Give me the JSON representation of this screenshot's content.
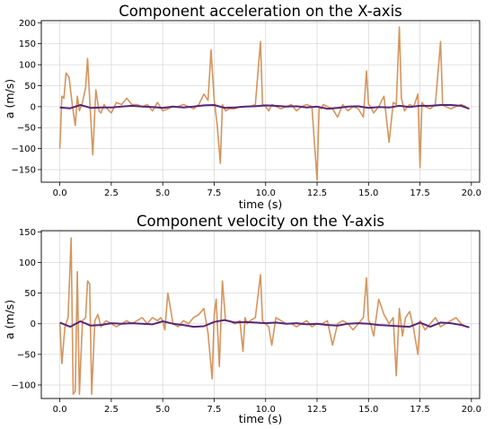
{
  "chart_data": [
    {
      "type": "line",
      "title": "Component acceleration on the X-axis",
      "xlabel": "time (s)",
      "ylabel": "a (m/s)",
      "xlim": [
        -0.9,
        20.4
      ],
      "ylim": [
        -180,
        205
      ],
      "xticks": [
        0.0,
        2.5,
        5.0,
        7.5,
        10.0,
        12.5,
        15.0,
        17.5,
        20.0
      ],
      "xtick_labels": [
        "0.0",
        "2.5",
        "5.0",
        "7.5",
        "10.0",
        "12.5",
        "15.0",
        "17.5",
        "20.0"
      ],
      "yticks": [
        -150,
        -100,
        -50,
        0,
        50,
        100,
        150,
        200
      ],
      "ytick_labels": [
        "−150",
        "−100",
        "−50",
        "0",
        "50",
        "100",
        "150",
        "200"
      ],
      "grid": true,
      "series": [
        {
          "color": "#d4955e",
          "x": [
            0.0,
            0.1,
            0.2,
            0.3,
            0.45,
            0.6,
            0.75,
            0.85,
            0.95,
            1.1,
            1.25,
            1.35,
            1.45,
            1.6,
            1.75,
            1.9,
            2.0,
            2.15,
            2.3,
            2.5,
            2.75,
            3.0,
            3.25,
            3.5,
            3.75,
            4.0,
            4.25,
            4.5,
            4.75,
            5.0,
            5.25,
            5.5,
            5.75,
            6.0,
            6.25,
            6.5,
            6.75,
            7.0,
            7.2,
            7.35,
            7.5,
            7.65,
            7.8,
            7.9,
            8.05,
            8.25,
            8.5,
            8.75,
            9.0,
            9.25,
            9.5,
            9.75,
            9.85,
            10.0,
            10.15,
            10.3,
            10.5,
            10.75,
            11.0,
            11.25,
            11.5,
            11.75,
            12.0,
            12.25,
            12.5,
            12.6,
            12.7,
            12.8,
            13.0,
            13.25,
            13.5,
            13.75,
            14.0,
            14.25,
            14.5,
            14.75,
            14.9,
            15.0,
            15.1,
            15.25,
            15.5,
            15.75,
            16.0,
            16.2,
            16.35,
            16.5,
            16.6,
            16.75,
            16.9,
            17.0,
            17.2,
            17.4,
            17.5,
            17.6,
            17.75,
            18.0,
            18.25,
            18.5,
            18.6,
            18.75,
            19.0,
            19.25,
            19.5,
            19.75
          ],
          "y": [
            -100,
            25,
            20,
            80,
            70,
            5,
            -45,
            25,
            -10,
            10,
            45,
            115,
            20,
            -115,
            40,
            -10,
            -15,
            5,
            -5,
            -15,
            10,
            5,
            20,
            5,
            5,
            0,
            5,
            -10,
            10,
            -10,
            -5,
            0,
            0,
            5,
            0,
            -5,
            5,
            30,
            15,
            135,
            15,
            -45,
            -135,
            5,
            -10,
            -5,
            -5,
            0,
            0,
            0,
            5,
            155,
            5,
            0,
            -10,
            5,
            0,
            -5,
            0,
            5,
            -10,
            0,
            5,
            0,
            -175,
            0,
            -5,
            5,
            0,
            -5,
            -25,
            5,
            -10,
            0,
            -5,
            -25,
            85,
            5,
            0,
            -15,
            0,
            25,
            -85,
            10,
            5,
            190,
            20,
            -10,
            0,
            5,
            0,
            30,
            -145,
            10,
            0,
            -5,
            5,
            155,
            5,
            0,
            -5,
            0,
            5,
            0
          ]
        },
        {
          "color": "#5b2477",
          "x": [
            0.0,
            0.5,
            1.0,
            1.5,
            2.0,
            2.5,
            3.0,
            3.5,
            4.0,
            4.5,
            5.0,
            5.5,
            6.0,
            6.5,
            7.0,
            7.5,
            8.0,
            8.5,
            9.0,
            9.5,
            10.0,
            10.5,
            11.0,
            11.5,
            12.0,
            12.5,
            13.0,
            13.5,
            14.0,
            14.5,
            15.0,
            15.5,
            16.0,
            16.5,
            17.0,
            17.5,
            18.0,
            18.5,
            19.0,
            19.5,
            19.9
          ],
          "y": [
            -2,
            -4,
            4,
            -3,
            -2,
            -2,
            0,
            2,
            0,
            -1,
            -3,
            0,
            -2,
            0,
            3,
            4,
            -3,
            -2,
            0,
            1,
            3,
            2,
            0,
            1,
            -2,
            0,
            -5,
            -3,
            0,
            1,
            -3,
            -1,
            -2,
            2,
            -1,
            2,
            2,
            4,
            4,
            2,
            -5
          ]
        }
      ]
    },
    {
      "type": "line",
      "title": "Component velocity on the Y-axis",
      "xlabel": "time (s)",
      "ylabel": "a (m/s)",
      "xlim": [
        -0.9,
        20.4
      ],
      "ylim": [
        -122,
        152
      ],
      "xticks": [
        0.0,
        2.5,
        5.0,
        7.5,
        10.0,
        12.5,
        15.0,
        17.5,
        20.0
      ],
      "xtick_labels": [
        "0.0",
        "2.5",
        "5.0",
        "7.5",
        "10.0",
        "12.5",
        "15.0",
        "17.5",
        "20.0"
      ],
      "yticks": [
        -100,
        -50,
        0,
        50,
        100,
        150
      ],
      "ytick_labels": [
        "−100",
        "−50",
        "0",
        "50",
        "100",
        "150"
      ],
      "grid": true,
      "series": [
        {
          "color": "#d4955e",
          "x": [
            0.0,
            0.1,
            0.25,
            0.4,
            0.55,
            0.65,
            0.75,
            0.85,
            0.95,
            1.1,
            1.25,
            1.35,
            1.45,
            1.55,
            1.7,
            1.85,
            2.0,
            2.25,
            2.5,
            2.75,
            3.0,
            3.25,
            3.5,
            3.75,
            4.0,
            4.25,
            4.5,
            4.75,
            4.9,
            5.0,
            5.1,
            5.25,
            5.5,
            5.75,
            6.0,
            6.25,
            6.5,
            6.75,
            7.0,
            7.2,
            7.4,
            7.5,
            7.6,
            7.75,
            7.9,
            8.05,
            8.25,
            8.5,
            8.75,
            8.9,
            9.0,
            9.1,
            9.25,
            9.5,
            9.75,
            9.85,
            10.0,
            10.15,
            10.3,
            10.5,
            10.75,
            11.0,
            11.25,
            11.5,
            11.75,
            12.0,
            12.25,
            12.5,
            12.75,
            13.0,
            13.25,
            13.5,
            13.75,
            14.0,
            14.25,
            14.5,
            14.75,
            14.9,
            15.0,
            15.1,
            15.25,
            15.5,
            15.75,
            16.0,
            16.2,
            16.35,
            16.5,
            16.65,
            16.8,
            17.0,
            17.2,
            17.4,
            17.5,
            17.75,
            18.0,
            18.25,
            18.5,
            18.75,
            19.0,
            19.25,
            19.5,
            19.75
          ],
          "y": [
            0,
            -65,
            -5,
            10,
            140,
            -115,
            -110,
            85,
            -115,
            5,
            10,
            70,
            65,
            -115,
            5,
            15,
            -5,
            5,
            0,
            -5,
            0,
            5,
            0,
            5,
            10,
            0,
            10,
            5,
            10,
            5,
            -10,
            50,
            0,
            -5,
            5,
            0,
            10,
            15,
            25,
            -15,
            -90,
            15,
            40,
            -70,
            70,
            5,
            5,
            0,
            5,
            -45,
            10,
            0,
            5,
            10,
            80,
            5,
            0,
            -5,
            -35,
            10,
            5,
            0,
            0,
            -5,
            0,
            5,
            -5,
            0,
            0,
            5,
            -35,
            0,
            5,
            0,
            -10,
            0,
            10,
            75,
            5,
            0,
            -20,
            40,
            15,
            0,
            10,
            -85,
            25,
            -20,
            10,
            20,
            -10,
            -50,
            5,
            -10,
            0,
            10,
            -5,
            0,
            5,
            10,
            0,
            -5
          ]
        },
        {
          "color": "#5b2477",
          "x": [
            0.0,
            0.5,
            1.0,
            1.5,
            2.0,
            2.5,
            3.0,
            3.5,
            4.0,
            4.5,
            5.0,
            5.5,
            6.0,
            6.5,
            7.0,
            7.5,
            8.0,
            8.5,
            9.0,
            9.5,
            10.0,
            10.5,
            11.0,
            11.5,
            12.0,
            12.5,
            13.0,
            13.5,
            14.0,
            14.5,
            15.0,
            15.5,
            16.0,
            16.5,
            17.0,
            17.5,
            18.0,
            18.5,
            19.0,
            19.5,
            19.9
          ],
          "y": [
            2,
            -5,
            4,
            -3,
            -2,
            1,
            0,
            1,
            0,
            -1,
            4,
            0,
            -2,
            -5,
            -4,
            3,
            6,
            2,
            3,
            2,
            1,
            2,
            0,
            1,
            -1,
            0,
            -2,
            -3,
            0,
            1,
            0,
            -2,
            -3,
            -4,
            -5,
            2,
            -5,
            2,
            1,
            -2,
            -6
          ]
        }
      ]
    }
  ]
}
